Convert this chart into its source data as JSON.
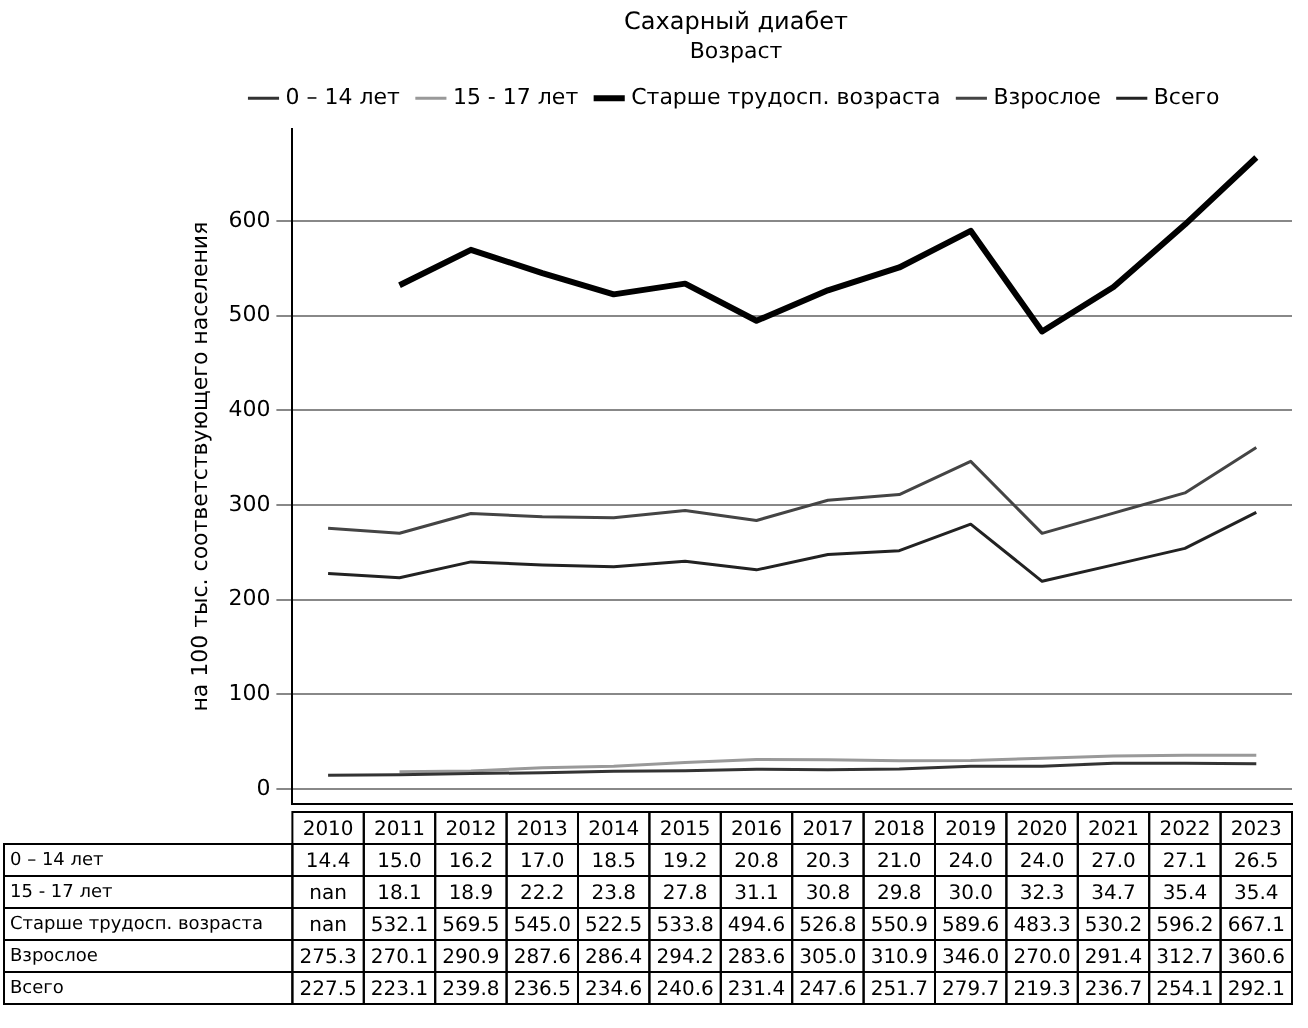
{
  "chart_data": {
    "type": "line",
    "title": "Сахарный диабет",
    "ylabel": "на 100 тыс. соответствующего населения",
    "legend_title": "Возраст",
    "categories": [
      "2010",
      "2011",
      "2012",
      "2013",
      "2014",
      "2015",
      "2016",
      "2017",
      "2018",
      "2019",
      "2020",
      "2021",
      "2022",
      "2023"
    ],
    "series": [
      {
        "name": "0 – 14 лет",
        "color": "#333333",
        "values": [
          14.4,
          15.0,
          16.2,
          17.0,
          18.5,
          19.2,
          20.8,
          20.3,
          21.0,
          24.0,
          24.0,
          27.0,
          27.1,
          26.5
        ],
        "value_labels": [
          "14.4",
          "15.0",
          "16.2",
          "17.0",
          "18.5",
          "19.2",
          "20.8",
          "20.3",
          "21.0",
          "24.0",
          "24.0",
          "27.0",
          "27.1",
          "26.5"
        ]
      },
      {
        "name": "15 - 17 лет",
        "color": "#999999",
        "values": [
          null,
          18.1,
          18.9,
          22.2,
          23.8,
          27.8,
          31.1,
          30.8,
          29.8,
          30.0,
          32.3,
          34.7,
          35.4,
          35.4
        ],
        "value_labels": [
          "nan",
          "18.1",
          "18.9",
          "22.2",
          "23.8",
          "27.8",
          "31.1",
          "30.8",
          "29.8",
          "30.0",
          "32.3",
          "34.7",
          "35.4",
          "35.4"
        ]
      },
      {
        "name": "Старше трудосп. возраста",
        "color": "#000000",
        "values": [
          null,
          532.1,
          569.5,
          545.0,
          522.5,
          533.8,
          494.6,
          526.8,
          550.9,
          589.6,
          483.3,
          530.2,
          596.2,
          667.1
        ],
        "value_labels": [
          "nan",
          "532.1",
          "569.5",
          "545.0",
          "522.5",
          "533.8",
          "494.6",
          "526.8",
          "550.9",
          "589.6",
          "483.3",
          "530.2",
          "596.2",
          "667.1"
        ]
      },
      {
        "name": "Взрослое",
        "color": "#444444",
        "values": [
          275.3,
          270.1,
          290.9,
          287.6,
          286.4,
          294.2,
          283.6,
          305.0,
          310.9,
          346.0,
          270.0,
          291.4,
          312.7,
          360.6
        ],
        "value_labels": [
          "275.3",
          "270.1",
          "290.9",
          "287.6",
          "286.4",
          "294.2",
          "283.6",
          "305.0",
          "310.9",
          "346.0",
          "270.0",
          "291.4",
          "312.7",
          "360.6"
        ]
      },
      {
        "name": "Всего",
        "color": "#222222",
        "values": [
          227.5,
          223.1,
          239.8,
          236.5,
          234.6,
          240.6,
          231.4,
          247.6,
          251.7,
          279.7,
          219.3,
          236.7,
          254.1,
          292.1
        ],
        "value_labels": [
          "227.5",
          "223.1",
          "239.8",
          "236.5",
          "234.6",
          "240.6",
          "231.4",
          "247.6",
          "251.7",
          "279.7",
          "219.3",
          "236.7",
          "254.1",
          "292.1"
        ]
      }
    ],
    "ylim": [
      -16,
      697
    ],
    "yticks": [
      0,
      100,
      200,
      300,
      400,
      500,
      600
    ],
    "grid": "y",
    "legend": "top"
  }
}
